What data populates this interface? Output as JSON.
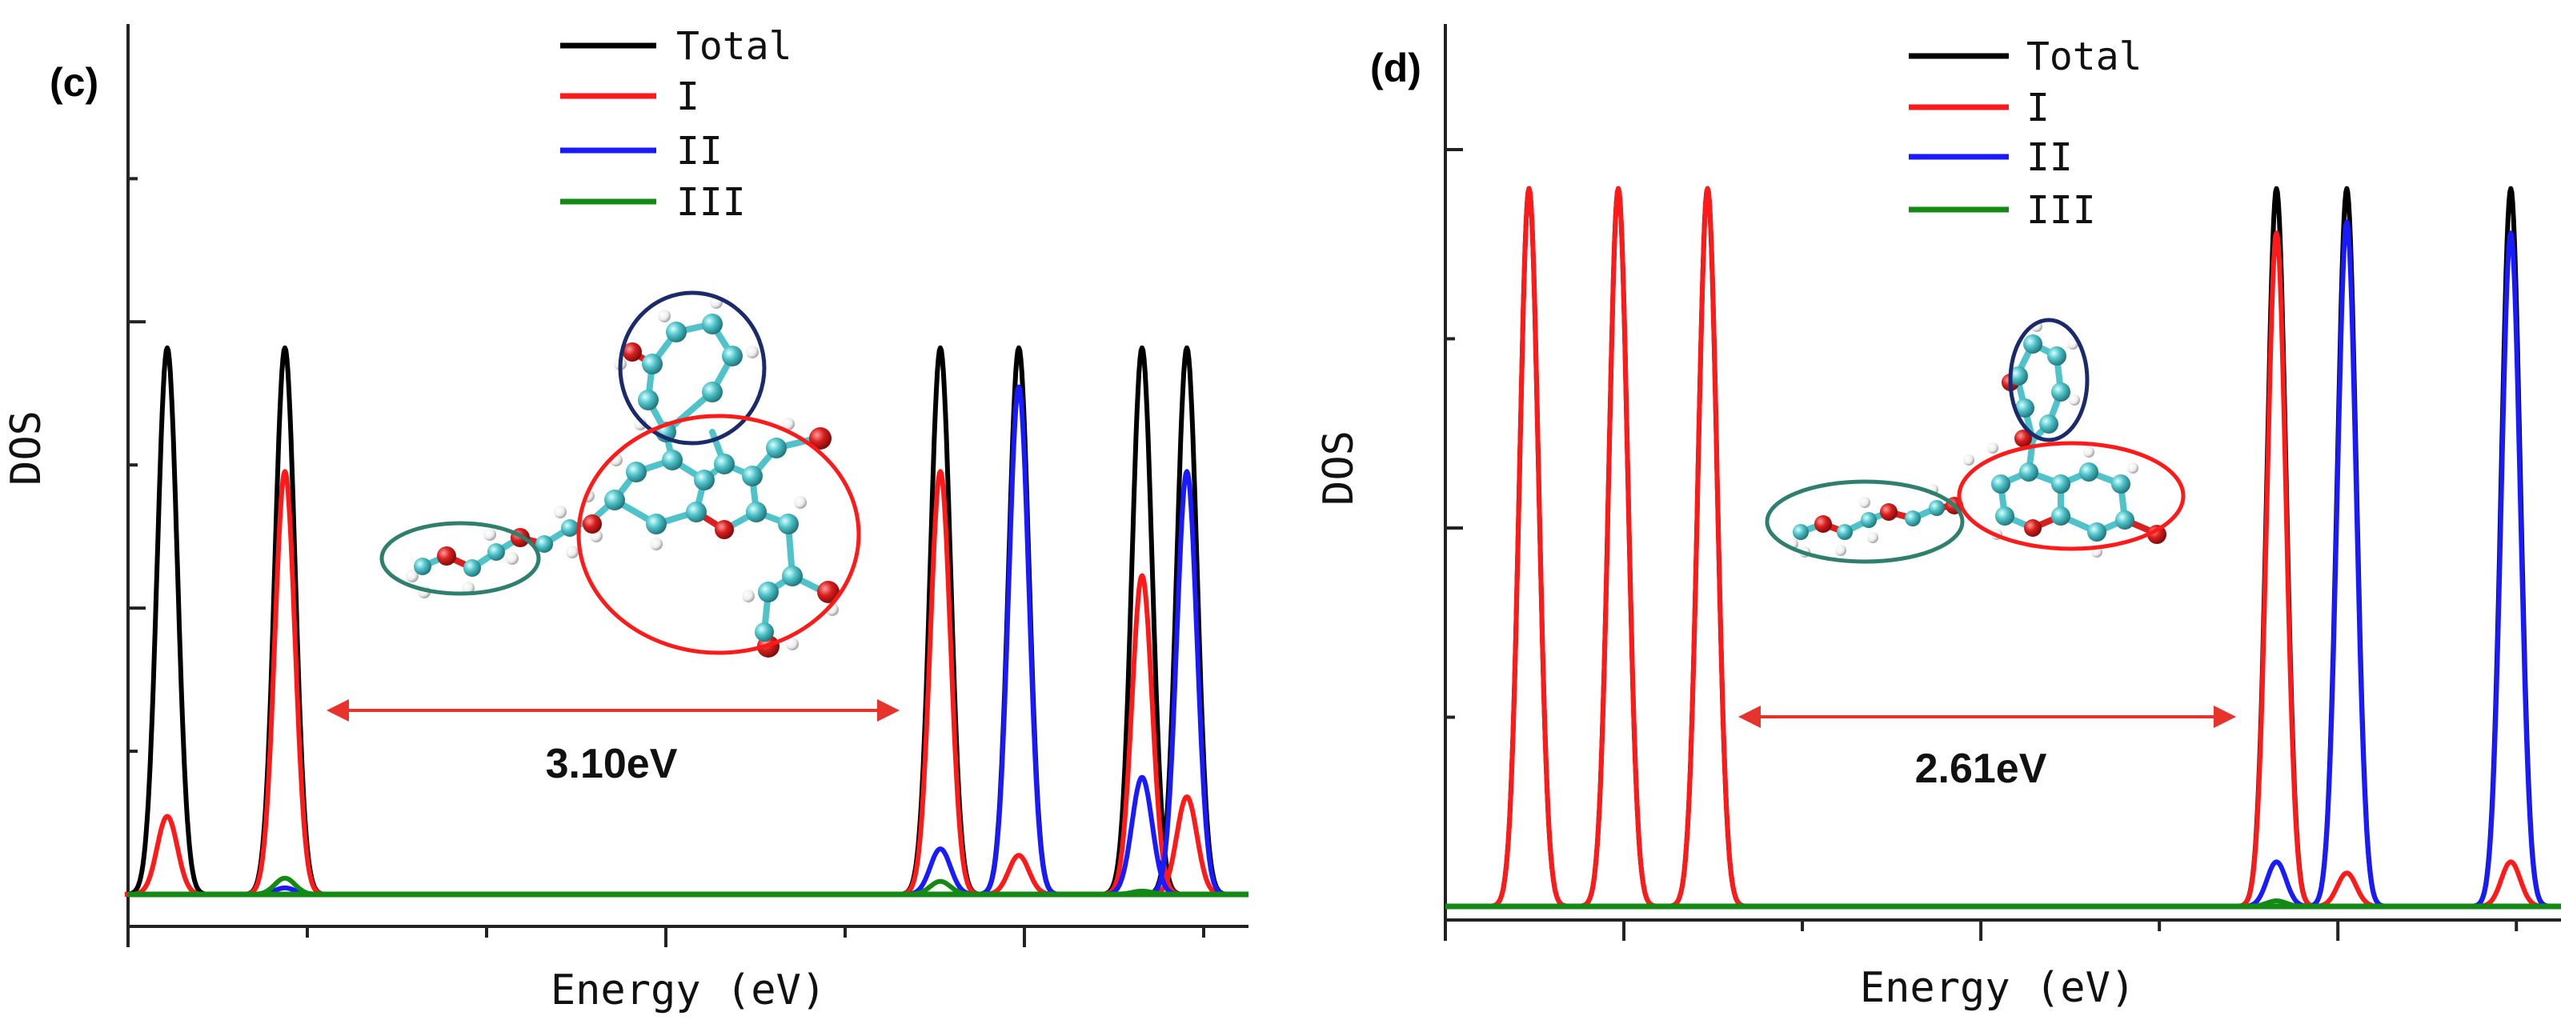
{
  "chart_data": [
    {
      "type": "line",
      "panel_label": "(c)",
      "xlabel": "Energy (eV)",
      "ylabel": "DOS",
      "xlim": [
        0,
        100
      ],
      "ylim": [
        0,
        1.35
      ],
      "x_ticks_major": [
        0,
        48,
        80
      ],
      "x_ticks_minor": [
        16,
        32,
        64,
        96
      ],
      "y_ticks_major": [
        0.44,
        0.88
      ],
      "y_ticks_minor": [
        0.22,
        0.66,
        1.1
      ],
      "tick_labels_shown": false,
      "legend": [
        "Total",
        "I",
        "II",
        "III"
      ],
      "legend_position": "top-center",
      "colors": {
        "Total": "#000000",
        "I": "#ff1a1a",
        "II": "#1a1aff",
        "III": "#138a13"
      },
      "peak_width": 0.9,
      "peaks": [
        {
          "x": 3.5,
          "Total": 0.84,
          "I": 0.12,
          "II": 0.0,
          "III": 0.0
        },
        {
          "x": 14.0,
          "Total": 0.84,
          "I": 0.65,
          "II": 0.01,
          "III": 0.025
        },
        {
          "x": 72.5,
          "Total": 0.84,
          "I": 0.65,
          "II": 0.07,
          "III": 0.02
        },
        {
          "x": 79.5,
          "Total": 0.84,
          "I": 0.06,
          "II": 0.78,
          "III": 0.0
        },
        {
          "x": 90.5,
          "Total": 0.84,
          "I": 0.49,
          "II": 0.18,
          "III": 0.005
        },
        {
          "x": 94.5,
          "Total": 0.84,
          "I": 0.15,
          "II": 0.65,
          "III": 0.0
        }
      ],
      "band_gap": {
        "label": "3.10eV",
        "from": 14.0,
        "to": 72.5
      }
    },
    {
      "type": "line",
      "panel_label": "(d)",
      "xlabel": "Energy (eV)",
      "ylabel": "DOS",
      "xlim": [
        0,
        100
      ],
      "ylim": [
        0,
        1.6
      ],
      "x_ticks_major": [
        0,
        16,
        48,
        80
      ],
      "x_ticks_minor": [
        32,
        64,
        96
      ],
      "y_ticks_major": [
        0.68,
        1.36
      ],
      "y_ticks_minor": [
        0.34,
        1.02
      ],
      "tick_labels_shown": false,
      "legend": [
        "Total",
        "I",
        "II",
        "III"
      ],
      "legend_position": "top-center",
      "colors": {
        "Total": "#000000",
        "I": "#ff1a1a",
        "II": "#1a1aff",
        "III": "#138a13"
      },
      "peak_width": 0.85,
      "peaks": [
        {
          "x": 7.5,
          "Total": 1.29,
          "I": 1.29,
          "II": 0.0,
          "III": 0.0
        },
        {
          "x": 15.5,
          "Total": 1.29,
          "I": 1.29,
          "II": 0.0,
          "III": 0.0
        },
        {
          "x": 23.5,
          "Total": 1.29,
          "I": 1.29,
          "II": 0.0,
          "III": 0.0
        },
        {
          "x": 74.5,
          "Total": 1.29,
          "I": 1.21,
          "II": 0.08,
          "III": 0.01
        },
        {
          "x": 80.8,
          "Total": 1.29,
          "I": 0.06,
          "II": 1.23,
          "III": 0.0
        },
        {
          "x": 95.5,
          "Total": 1.29,
          "I": 0.08,
          "II": 1.21,
          "III": 0.0
        }
      ],
      "band_gap": {
        "label": "2.61eV",
        "from": 26.5,
        "to": 71.5
      }
    }
  ]
}
